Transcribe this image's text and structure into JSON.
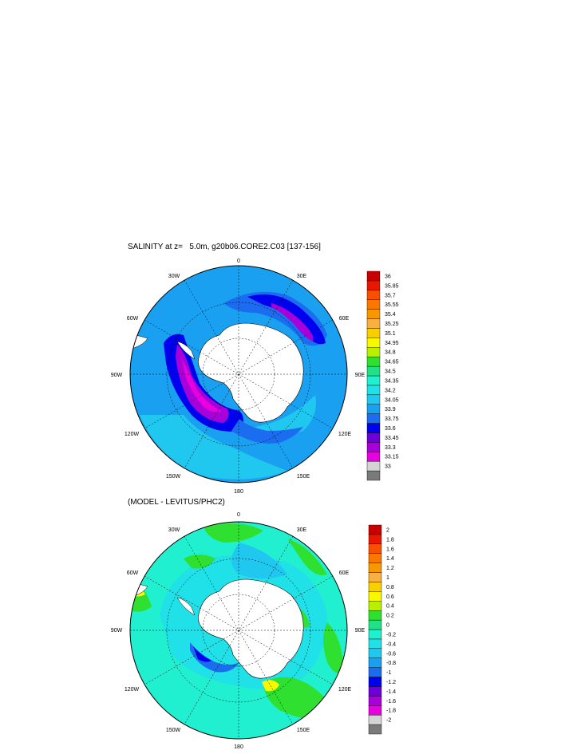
{
  "colors": {
    "land": "#ffffff",
    "panel1_scale": [
      "#7a7a7a",
      "#d4d4d4",
      "#e800e0",
      "#a800d8",
      "#6c00d8",
      "#0000f0",
      "#1c6cf0",
      "#1aa0f0",
      "#20c8f0",
      "#20e0e8",
      "#20f0d0",
      "#20e088",
      "#30e030",
      "#b8f000",
      "#f8f800",
      "#f8d000",
      "#f8b040",
      "#f89800",
      "#f87800",
      "#f85000",
      "#e81800",
      "#c80000"
    ],
    "panel2_scale": [
      "#7a7a7a",
      "#d4d4d4",
      "#e800e0",
      "#a800d8",
      "#6c00d8",
      "#0000f0",
      "#1c6cf0",
      "#1aa0f0",
      "#20c8f0",
      "#20e0e8",
      "#20f0d0",
      "#20e088",
      "#30e030",
      "#b8f000",
      "#f8f800",
      "#f8d000",
      "#f8b040",
      "#f89800",
      "#f87800",
      "#f85000",
      "#e81800",
      "#c80000"
    ]
  },
  "panels": [
    {
      "title": "SALINITY at z=   5.0m, g20b06.CORE2.C03 [137-156]",
      "lon_labels": {
        "top": "0",
        "top_left": "30W",
        "top_right": "30E",
        "left_upper": "60W",
        "right_upper": "60E",
        "left": "90W",
        "right": "90E",
        "left_lower": "120W",
        "right_lower": "120E",
        "bottom_left": "150W",
        "bottom_right": "150E",
        "bottom": "180"
      },
      "colorbar_labels": [
        "36",
        "35.85",
        "35.7",
        "35.55",
        "35.4",
        "35.25",
        "35.1",
        "34.95",
        "34.8",
        "34.65",
        "34.5",
        "34.35",
        "34.2",
        "34.05",
        "33.9",
        "33.75",
        "33.6",
        "33.45",
        "33.3",
        "33.15",
        "33"
      ]
    },
    {
      "title": "(MODEL - LEVITUS/PHC2)",
      "lon_labels": {
        "top": "0",
        "top_left": "30W",
        "top_right": "30E",
        "left_upper": "60W",
        "right_upper": "60E",
        "left": "90W",
        "right": "90E",
        "left_lower": "120W",
        "right_lower": "120E",
        "bottom_left": "150W",
        "bottom_right": "150E",
        "bottom": "180"
      },
      "colorbar_labels": [
        "2",
        "1.8",
        "1.6",
        "1.4",
        "1.2",
        "1",
        "0.8",
        "0.6",
        "0.4",
        "0.2",
        "0",
        "-0.2",
        "-0.4",
        "-0.6",
        "-0.8",
        "-1",
        "-1.2",
        "-1.4",
        "-1.6",
        "-1.8",
        "-2"
      ]
    }
  ]
}
